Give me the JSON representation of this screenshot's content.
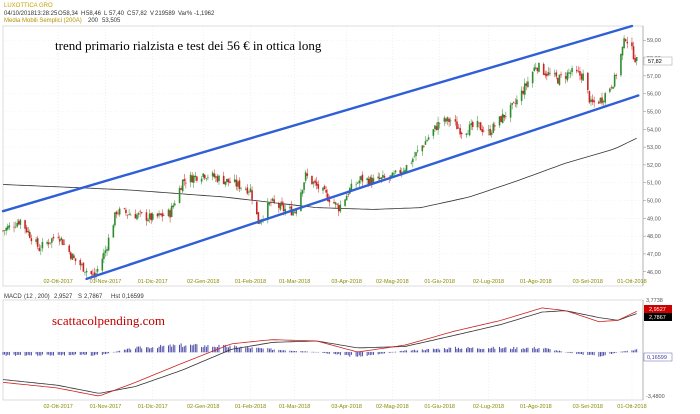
{
  "header": {
    "title": "LUXOTTICA GRO",
    "date": "04/10/2018",
    "time": "13:28:25",
    "open_label": "O",
    "open": "58,34",
    "high_label": "H",
    "high": "58,46",
    "low_label": "L",
    "low": "57,40",
    "close_label": "C",
    "close": "57,82",
    "volume_label": "V",
    "volume": "219589",
    "change_label": "Var%",
    "change": "-1,1962",
    "ma_label": "Media Mobili Semplici (200A)",
    "ma_period": "200",
    "ma_value": "53,505"
  },
  "annotation": "trend primario rialzista e test dei 56 € in ottica long",
  "watermark": "scattacolpending.com",
  "price_badge": "57,82",
  "macd_panel": {
    "label": "MACD",
    "params": "(12 , 200)",
    "macd_value": "2,9527",
    "signal_label": "S",
    "signal_value": "2,7867",
    "hist_label": "Hst",
    "hist_value": "0,16599",
    "badge_macd": "2,9527",
    "badge_signal": "2,7867",
    "badge_hist": "0,16599",
    "y_top_label": "3,7738",
    "y_bottom_label": "-3,4800"
  },
  "colors": {
    "candle_up": "#2e8b2e",
    "candle_down": "#cc2222",
    "channel": "#2f5fd6",
    "ma_line": "#333333",
    "macd_line": "#cc2222",
    "signal_line": "#333333",
    "histogram": "#3a3aa0",
    "title": "#c8a000"
  },
  "chart_data": [
    {
      "type": "candlestick",
      "title": "LUXOTTICA GRO",
      "x_tick_labels": [
        "02-Ott-2017",
        "01-Nov-2017",
        "01-Dic-2017",
        "02-Gen-2018",
        "01-Feb-2018",
        "01-Mar-2018",
        "03-Apr-2018",
        "02-Mag-2018",
        "01-Giu-2018",
        "02-Lug-2018",
        "01-Ago-2018",
        "03-Set-2018",
        "01-Ott-2018"
      ],
      "y_tick_labels": [
        "46,00",
        "47,00",
        "48,00",
        "49,00",
        "50,00",
        "51,00",
        "52,00",
        "53,00",
        "54,00",
        "55,00",
        "56,00",
        "57,00",
        "58,00",
        "59,00"
      ],
      "ylim": [
        45.2,
        59.8
      ],
      "price_keypoints": [
        [
          "2017-08-28",
          48.3
        ],
        [
          "2017-09-08",
          48.9
        ],
        [
          "2017-09-20",
          47.3
        ],
        [
          "2017-10-02",
          48.1
        ],
        [
          "2017-10-12",
          46.7
        ],
        [
          "2017-10-25",
          45.7
        ],
        [
          "2017-11-01",
          47.2
        ],
        [
          "2017-11-08",
          49.4
        ],
        [
          "2017-11-20",
          49.2
        ],
        [
          "2017-12-01",
          49.0
        ],
        [
          "2017-12-12",
          49.3
        ],
        [
          "2017-12-20",
          51.1
        ],
        [
          "2018-01-02",
          51.5
        ],
        [
          "2018-01-10",
          51.3
        ],
        [
          "2018-01-20",
          51.0
        ],
        [
          "2018-02-01",
          50.6
        ],
        [
          "2018-02-06",
          48.8
        ],
        [
          "2018-02-14",
          49.9
        ],
        [
          "2018-02-22",
          49.5
        ],
        [
          "2018-03-01",
          49.4
        ],
        [
          "2018-03-08",
          51.4
        ],
        [
          "2018-03-15",
          50.8
        ],
        [
          "2018-03-22",
          50.2
        ],
        [
          "2018-03-29",
          49.6
        ],
        [
          "2018-04-05",
          50.6
        ],
        [
          "2018-04-12",
          51.2
        ],
        [
          "2018-04-20",
          51.1
        ],
        [
          "2018-05-02",
          51.3
        ],
        [
          "2018-05-12",
          52.0
        ],
        [
          "2018-05-22",
          53.2
        ],
        [
          "2018-06-01",
          54.4
        ],
        [
          "2018-06-08",
          54.5
        ],
        [
          "2018-06-15",
          53.9
        ],
        [
          "2018-06-25",
          54.2
        ],
        [
          "2018-07-02",
          53.8
        ],
        [
          "2018-07-10",
          54.6
        ],
        [
          "2018-07-18",
          55.3
        ],
        [
          "2018-07-26",
          56.5
        ],
        [
          "2018-08-01",
          57.6
        ],
        [
          "2018-08-07",
          57.2
        ],
        [
          "2018-08-15",
          56.8
        ],
        [
          "2018-08-23",
          57.2
        ],
        [
          "2018-08-31",
          57.0
        ],
        [
          "2018-09-05",
          55.4
        ],
        [
          "2018-09-12",
          55.7
        ],
        [
          "2018-09-20",
          56.8
        ],
        [
          "2018-09-27",
          59.2
        ],
        [
          "2018-10-04",
          57.8
        ]
      ],
      "ma200_keypoints": [
        [
          "2017-08-28",
          50.9
        ],
        [
          "2017-11-15",
          50.6
        ],
        [
          "2018-01-15",
          50.2
        ],
        [
          "2018-03-15",
          49.6
        ],
        [
          "2018-04-20",
          49.5
        ],
        [
          "2018-05-20",
          49.6
        ],
        [
          "2018-06-20",
          50.2
        ],
        [
          "2018-07-20",
          51.1
        ],
        [
          "2018-08-20",
          52.1
        ],
        [
          "2018-09-20",
          52.9
        ],
        [
          "2018-10-04",
          53.5
        ]
      ],
      "channel_upper": [
        [
          "2017-08-28",
          49.4
        ],
        [
          "2018-10-01",
          59.8
        ]
      ],
      "channel_lower": [
        [
          "2017-10-20",
          45.6
        ],
        [
          "2018-10-05",
          55.9
        ]
      ]
    },
    {
      "type": "line",
      "title": "MACD",
      "ylim": [
        -3.48,
        3.7738
      ],
      "series": [
        {
          "name": "MACD",
          "points": [
            [
              "2017-08-28",
              -2.2
            ],
            [
              "2017-10-01",
              -2.6
            ],
            [
              "2017-10-28",
              -3.2
            ],
            [
              "2017-11-20",
              -2.2
            ],
            [
              "2017-12-20",
              -0.8
            ],
            [
              "2018-01-20",
              0.6
            ],
            [
              "2018-02-15",
              0.9
            ],
            [
              "2018-03-15",
              0.8
            ],
            [
              "2018-04-10",
              0.0
            ],
            [
              "2018-05-10",
              0.5
            ],
            [
              "2018-06-10",
              1.5
            ],
            [
              "2018-07-10",
              2.3
            ],
            [
              "2018-08-05",
              3.2
            ],
            [
              "2018-08-20",
              3.0
            ],
            [
              "2018-09-10",
              2.2
            ],
            [
              "2018-09-22",
              2.3
            ],
            [
              "2018-10-04",
              2.95
            ]
          ]
        },
        {
          "name": "S",
          "points": [
            [
              "2017-08-28",
              -2.0
            ],
            [
              "2017-10-01",
              -2.4
            ],
            [
              "2017-10-28",
              -3.0
            ],
            [
              "2017-11-20",
              -2.5
            ],
            [
              "2017-12-20",
              -1.3
            ],
            [
              "2018-01-20",
              0.2
            ],
            [
              "2018-02-15",
              0.7
            ],
            [
              "2018-03-15",
              0.8
            ],
            [
              "2018-04-10",
              0.3
            ],
            [
              "2018-05-10",
              0.4
            ],
            [
              "2018-06-10",
              1.2
            ],
            [
              "2018-07-10",
              2.0
            ],
            [
              "2018-08-05",
              2.9
            ],
            [
              "2018-08-20",
              3.0
            ],
            [
              "2018-09-10",
              2.5
            ],
            [
              "2018-09-22",
              2.3
            ],
            [
              "2018-10-04",
              2.79
            ]
          ]
        },
        {
          "name": "Hst",
          "type": "bar",
          "points": [
            [
              "2017-08-28",
              -0.2
            ],
            [
              "2017-10-01",
              -0.2
            ],
            [
              "2017-10-28",
              -0.2
            ],
            [
              "2017-11-20",
              0.3
            ],
            [
              "2017-12-20",
              0.5
            ],
            [
              "2018-01-20",
              0.4
            ],
            [
              "2018-02-15",
              0.2
            ],
            [
              "2018-03-15",
              0.0
            ],
            [
              "2018-04-10",
              -0.3
            ],
            [
              "2018-05-10",
              0.1
            ],
            [
              "2018-06-10",
              0.3
            ],
            [
              "2018-07-10",
              0.3
            ],
            [
              "2018-08-05",
              0.3
            ],
            [
              "2018-08-20",
              0.0
            ],
            [
              "2018-09-10",
              -0.3
            ],
            [
              "2018-09-22",
              0.0
            ],
            [
              "2018-10-04",
              0.17
            ]
          ]
        }
      ]
    }
  ]
}
